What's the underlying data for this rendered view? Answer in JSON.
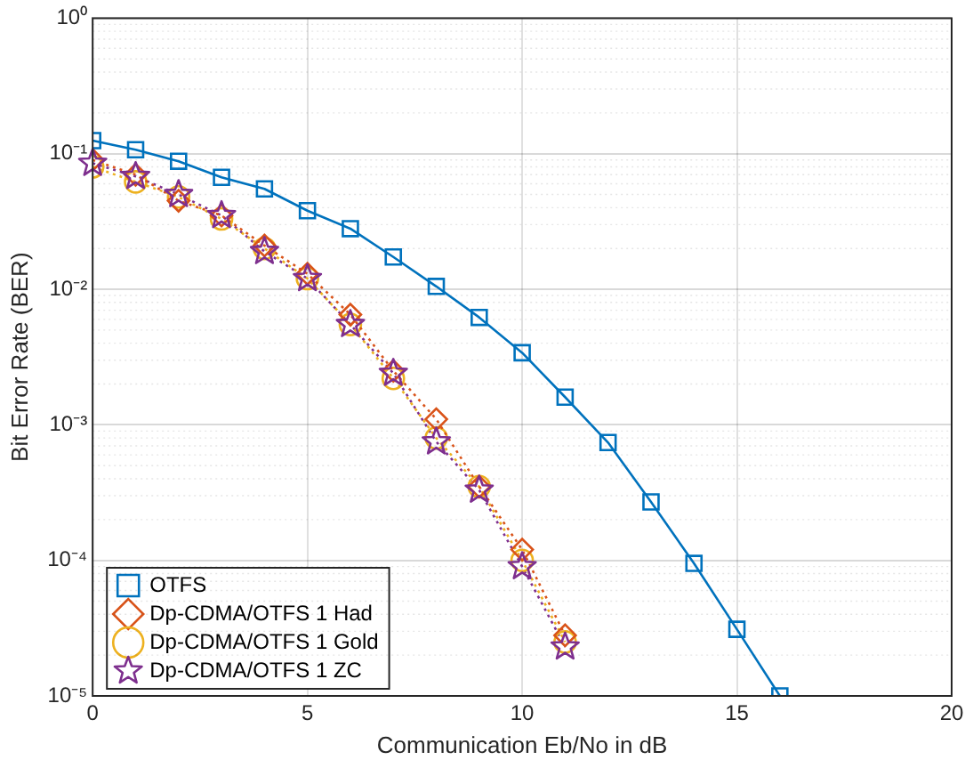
{
  "chart_data": {
    "type": "line",
    "xlabel": "Communication Eb/No in dB",
    "ylabel": "Bit Error Rate (BER)",
    "log": "y",
    "grid": true,
    "legend": "bottom left",
    "x": [
      0,
      1,
      2,
      3,
      4,
      5,
      6,
      7,
      8,
      9,
      10,
      11,
      12,
      13,
      14,
      15,
      16
    ],
    "xlim": [
      0,
      20
    ],
    "xticks": [
      0,
      5,
      10,
      15,
      20
    ],
    "ylim": [
      1e-05,
      1
    ],
    "yticks": [
      {
        "value": 1e-05,
        "label": "10⁻⁵"
      },
      {
        "value": 0.0001,
        "label": "10⁻⁴"
      },
      {
        "value": 0.001,
        "label": "10⁻³"
      },
      {
        "value": 0.01,
        "label": "10⁻²"
      },
      {
        "value": 0.1,
        "label": "10⁻¹"
      },
      {
        "value": 1,
        "label": "10⁰"
      }
    ],
    "series": [
      {
        "name": "OTFS",
        "color": "#0072bd",
        "marker": "square",
        "line_style": "solid",
        "values": [
          0.125,
          0.107,
          0.088,
          0.067,
          0.055,
          0.038,
          0.028,
          0.0173,
          0.0105,
          0.0062,
          0.0034,
          0.0016,
          0.00074,
          0.00027,
          9.5e-05,
          3.1e-05,
          1e-05
        ]
      },
      {
        "name": "Dp-CDMA/OTFS 1 Had",
        "color": "#d95319",
        "marker": "diamond",
        "line_style": "dotted",
        "values": [
          0.09,
          0.07,
          0.045,
          0.035,
          0.021,
          0.013,
          0.0065,
          0.0025,
          0.0011,
          0.00035,
          0.00012,
          2.8e-05,
          null,
          null,
          null,
          null,
          null
        ]
      },
      {
        "name": "Dp-CDMA/OTFS 1 Gold",
        "color": "#edb120",
        "marker": "circle",
        "line_style": "dotted",
        "values": [
          0.08,
          0.062,
          0.048,
          0.033,
          0.02,
          0.012,
          0.0055,
          0.0022,
          0.0008,
          0.00035,
          0.0001,
          2.5e-05,
          null,
          null,
          null,
          null,
          null
        ]
      },
      {
        "name": "Dp-CDMA/OTFS 1 ZC",
        "color": "#7e2f8e",
        "marker": "star",
        "line_style": "dotted",
        "values": [
          0.085,
          0.068,
          0.05,
          0.035,
          0.019,
          0.012,
          0.0055,
          0.0024,
          0.00075,
          0.00033,
          9e-05,
          2.3e-05,
          null,
          null,
          null,
          null,
          null
        ]
      }
    ]
  }
}
